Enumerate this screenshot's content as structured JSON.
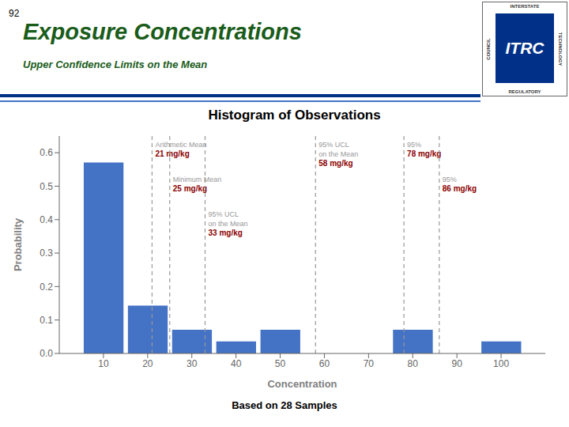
{
  "chart_data": {
    "type": "bar",
    "title": "Histogram of Observations",
    "x_label": "Concentration",
    "y_label": "Probability",
    "x": [
      10,
      20,
      30,
      40,
      50,
      80,
      100
    ],
    "values": [
      0.571,
      0.143,
      0.071,
      0.036,
      0.071,
      0.071,
      0.036
    ],
    "color": "#4472C4",
    "xlim": [
      0,
      110
    ],
    "xticks": [
      10,
      20,
      30,
      40,
      50,
      60,
      70,
      80,
      90,
      100
    ],
    "ylim": [
      0,
      0.65
    ],
    "yticks": [
      {
        "value": 0,
        "label": "0.0"
      },
      0.1,
      0.2,
      0.3,
      0.4,
      0.5,
      0.6
    ],
    "grid": false,
    "annotations": [
      {
        "x": 21,
        "lines": [
          {
            "text": "Arithmetic Mean",
            "color": "#999999"
          },
          {
            "text": "21 mg/kg",
            "color": "#8B0000"
          }
        ]
      },
      {
        "x": 25,
        "lines": [
          {
            "text": "Minimum Mean",
            "color": "#999999"
          },
          {
            "text": "25 mg/kg",
            "color": "#8B0000"
          }
        ]
      },
      {
        "x": 33,
        "lines": [
          {
            "text": "95% UCL",
            "color": "#999999"
          },
          {
            "text": "on the Mean",
            "color": "#999999"
          },
          {
            "text": "33 mg/kg",
            "color": "#8B0000"
          }
        ]
      },
      {
        "x": 58,
        "lines": [
          {
            "text": "95% UCL",
            "color": "#999999"
          },
          {
            "text": "on the Mean",
            "color": "#999999"
          },
          {
            "text": "58 mg/kg",
            "color": "#8B0000"
          }
        ]
      },
      {
        "x": 78,
        "lines": [
          {
            "text": "95%",
            "color": "#999999"
          },
          {
            "text": "78 mg/kg",
            "color": "#8B0000"
          }
        ]
      },
      {
        "x": 86,
        "lines": [
          {
            "text": "95%",
            "color": "#999999"
          },
          {
            "text": "86 mg/kg",
            "color": "#8B0000"
          }
        ]
      }
    ]
  },
  "header": {
    "slide_number": "92",
    "slide_number_color": "#000000",
    "title": "Exposure Concentrations",
    "subtitle": "Upper Confidence Limits on the Mean",
    "title_color": "#1a5c1a",
    "line_colors": [
      "#003087",
      "#4472C4"
    ]
  },
  "logo": {
    "text": "ITRC",
    "color": "#003087",
    "top": "INTERSTATE",
    "bottom": "REGULATORY",
    "left": "COUNCIL",
    "right": "TECHNOLOGY"
  },
  "footer": "Based on 28 Samples"
}
